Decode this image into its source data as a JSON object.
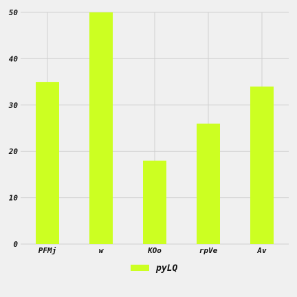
{
  "chart_data": {
    "type": "bar",
    "categories": [
      "PFMj",
      "w",
      "KOo",
      "rpVe",
      "Av"
    ],
    "series": [
      {
        "name": "pyLQ",
        "values": [
          35,
          50,
          18,
          26,
          34
        ],
        "color": "#ccff22"
      }
    ],
    "ylim": [
      0,
      50
    ],
    "yticks": [
      0,
      10,
      20,
      30,
      40,
      50
    ],
    "grid": true,
    "legend": "bottom-center",
    "background": "#f0f0f0"
  }
}
